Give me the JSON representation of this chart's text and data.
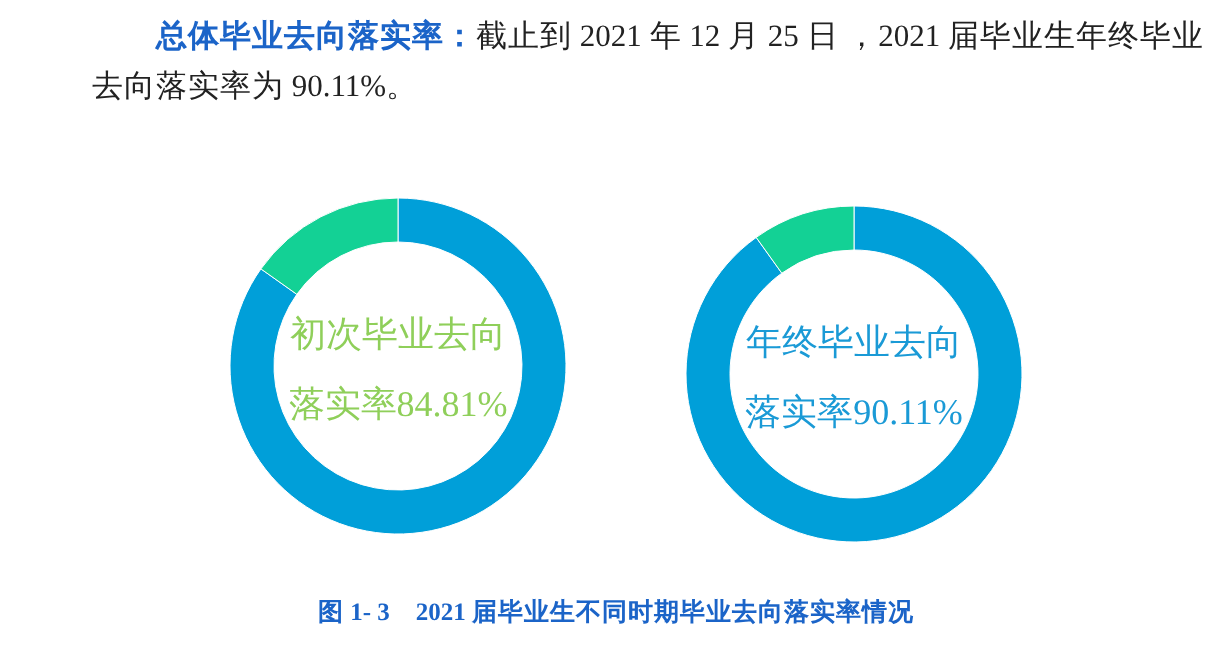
{
  "chart_data": [
    {
      "type": "other",
      "title": "总体毕业去向落实率：",
      "subtitle": "截止到 2021 年 12 月 25 日 ，2021 届毕业生年终毕业去向落实率为 90.11%。",
      "annotations": [
        "图 1- 3　2021 届毕业生不同时期毕业去向落实率情况"
      ]
    },
    {
      "type": "donut",
      "categories": [
        null,
        null
      ],
      "values": [
        84.81,
        15.19
      ],
      "colors": [
        "#009fd9",
        "#13d195"
      ],
      "annotations": [
        "初次毕业去向落实率84.81%"
      ]
    },
    {
      "type": "donut",
      "categories": [
        null,
        null
      ],
      "values": [
        90.11,
        9.89
      ],
      "colors": [
        "#009fd9",
        "#13d195"
      ],
      "annotations": [
        "年终毕业去向落实率90.11%"
      ]
    }
  ]
}
